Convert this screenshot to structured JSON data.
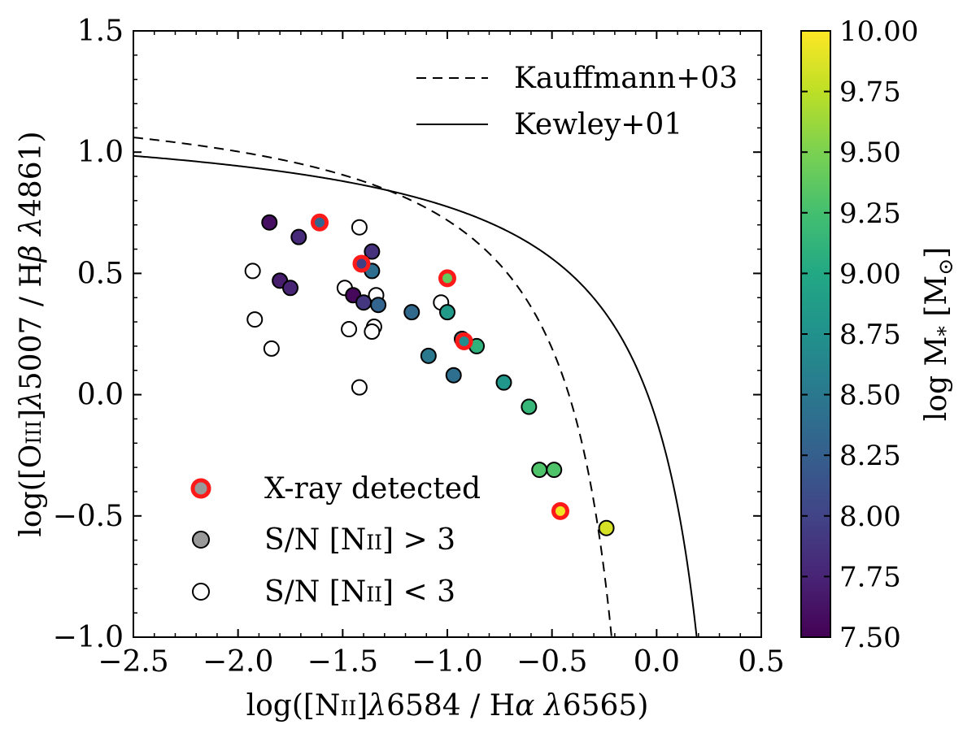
{
  "chart_data": {
    "type": "scatter",
    "title": "",
    "xlabel_parts": [
      "log([N",
      "II",
      "]",
      "λ",
      "6584 / H",
      "α",
      " ",
      "λ",
      "6565)"
    ],
    "ylabel_parts": [
      "log([O",
      "III",
      "]",
      "λ",
      "5007 / H",
      "β",
      " ",
      "λ",
      "4861)"
    ],
    "xlim": [
      -2.5,
      0.5
    ],
    "ylim": [
      -1.0,
      1.5
    ],
    "xticks": [
      -2.5,
      -2.0,
      -1.5,
      -1.0,
      -0.5,
      0.0,
      0.5
    ],
    "xtick_labels": [
      "−2.5",
      "−2.0",
      "−1.5",
      "−1.0",
      "−0.5",
      "0.0",
      "0.5"
    ],
    "yticks": [
      -1.0,
      -0.5,
      0.0,
      0.5,
      1.0,
      1.5
    ],
    "ytick_labels": [
      "−1.0",
      "−0.5",
      "0.0",
      "0.5",
      "1.0",
      "1.5"
    ],
    "colorbar": {
      "label_parts": [
        "log M",
        "*",
        " [M",
        "⊙",
        "]"
      ],
      "range": [
        7.5,
        10.0
      ],
      "ticks": [
        7.5,
        7.75,
        8.0,
        8.25,
        8.5,
        8.75,
        9.0,
        9.25,
        9.5,
        9.75,
        10.0
      ],
      "tick_labels": [
        "7.50",
        "7.75",
        "8.00",
        "8.25",
        "8.50",
        "8.75",
        "9.00",
        "9.25",
        "9.50",
        "9.75",
        "10.00"
      ],
      "colormap": "viridis"
    },
    "line_legend": [
      {
        "label": "Kauffmann+03",
        "style": "dashed"
      },
      {
        "label": "Kewley+01",
        "style": "solid"
      }
    ],
    "marker_legend": [
      {
        "label": "X-ray detected",
        "kind": "xray"
      },
      {
        "label_parts": [
          "S/N [N",
          "II",
          "] > 3"
        ],
        "kind": "detected"
      },
      {
        "label_parts": [
          "S/N [N",
          "II",
          "] < 3"
        ],
        "kind": "open"
      }
    ],
    "curves": [
      {
        "name": "Kauffmann+03",
        "formula": "0.61/(x-0.05)+1.3",
        "asymptote": 0.05,
        "style": "dashed"
      },
      {
        "name": "Kewley+01",
        "formula": "0.61/(x-0.47)+1.19",
        "asymptote": 0.47,
        "style": "solid"
      }
    ],
    "points_detected": [
      {
        "x": -1.85,
        "y": 0.71,
        "mass": 7.6
      },
      {
        "x": -1.71,
        "y": 0.65,
        "mass": 7.8
      },
      {
        "x": -1.8,
        "y": 0.47,
        "mass": 7.7
      },
      {
        "x": -1.75,
        "y": 0.44,
        "mass": 7.75
      },
      {
        "x": -1.45,
        "y": 0.41,
        "mass": 7.55
      },
      {
        "x": -1.4,
        "y": 0.38,
        "mass": 7.9
      },
      {
        "x": -1.36,
        "y": 0.59,
        "mass": 7.85
      },
      {
        "x": -1.36,
        "y": 0.51,
        "mass": 8.4
      },
      {
        "x": -1.33,
        "y": 0.37,
        "mass": 8.3
      },
      {
        "x": -1.17,
        "y": 0.34,
        "mass": 8.35
      },
      {
        "x": -1.09,
        "y": 0.16,
        "mass": 8.5
      },
      {
        "x": -1.0,
        "y": 0.34,
        "mass": 8.85
      },
      {
        "x": -0.97,
        "y": 0.08,
        "mass": 8.4
      },
      {
        "x": -0.93,
        "y": 0.23,
        "mass": 8.6
      },
      {
        "x": -0.86,
        "y": 0.2,
        "mass": 9.1
      },
      {
        "x": -0.73,
        "y": 0.05,
        "mass": 8.8
      },
      {
        "x": -0.61,
        "y": -0.05,
        "mass": 9.15
      },
      {
        "x": -0.56,
        "y": -0.31,
        "mass": 9.3
      },
      {
        "x": -0.49,
        "y": -0.31,
        "mass": 9.3
      },
      {
        "x": -0.24,
        "y": -0.55,
        "mass": 9.85
      }
    ],
    "points_xray": [
      {
        "x": -1.61,
        "y": 0.71,
        "mass": 8.3
      },
      {
        "x": -1.41,
        "y": 0.54,
        "mass": 7.95
      },
      {
        "x": -1.0,
        "y": 0.48,
        "mass": 9.4
      },
      {
        "x": -0.92,
        "y": 0.22,
        "mass": 8.7
      },
      {
        "x": -0.46,
        "y": -0.48,
        "mass": 9.95
      }
    ],
    "points_open": [
      {
        "x": -1.93,
        "y": 0.51
      },
      {
        "x": -1.92,
        "y": 0.31
      },
      {
        "x": -1.84,
        "y": 0.19
      },
      {
        "x": -1.49,
        "y": 0.44
      },
      {
        "x": -1.47,
        "y": 0.27
      },
      {
        "x": -1.42,
        "y": 0.69
      },
      {
        "x": -1.42,
        "y": 0.03
      },
      {
        "x": -1.34,
        "y": 0.41
      },
      {
        "x": -1.35,
        "y": 0.28
      },
      {
        "x": -1.36,
        "y": 0.26
      },
      {
        "x": -1.03,
        "y": 0.38
      }
    ]
  }
}
